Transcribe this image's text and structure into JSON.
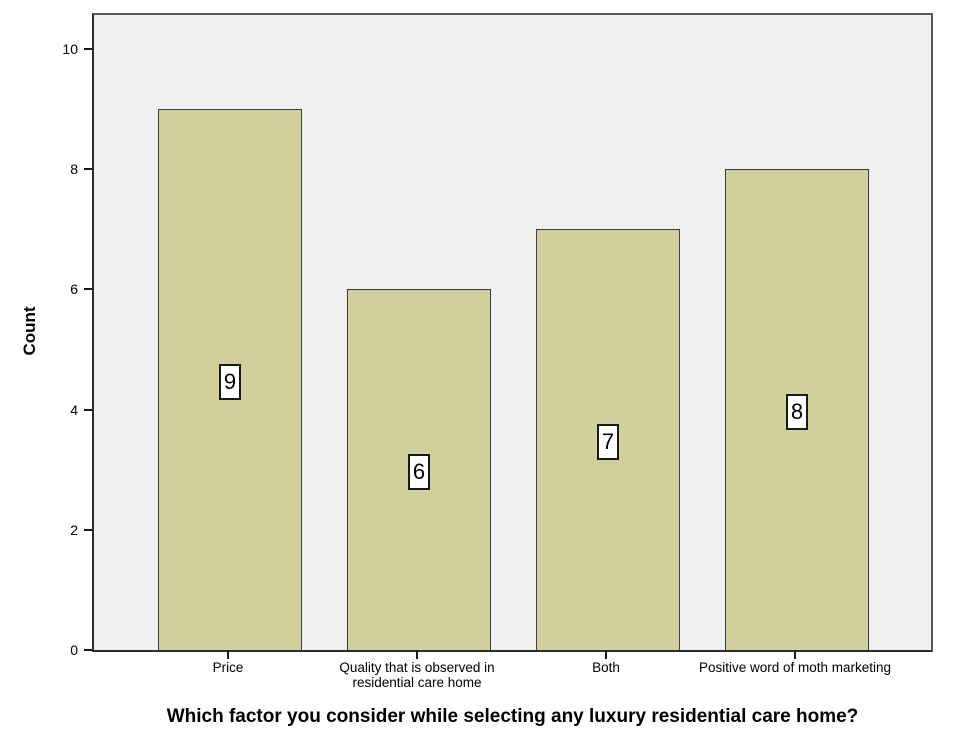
{
  "chart_data": {
    "type": "bar",
    "xlabel": "Which factor you consider while selecting any luxury residential care home?",
    "ylabel": "Count",
    "categories": [
      "Price",
      "Quality that is observed in residential care home",
      "Both",
      "Positive word of moth marketing"
    ],
    "values": [
      9,
      6,
      7,
      8
    ],
    "bar_labels": [
      "9",
      "6",
      "7",
      "8"
    ],
    "yticks": [
      0,
      2,
      4,
      6,
      8,
      10
    ],
    "ylim": [
      0,
      10
    ],
    "grid": false,
    "legend": "none",
    "layout_hint": "value labels boxed at vertical center of each bar; question text serves as bold x-axis title below chart",
    "colors": {
      "bar_fill": "#d2cf9e",
      "bar_border": "#3d3d3d",
      "plot_background": "#f0f0f0",
      "figure_background": "#ffffff",
      "value_label_background": "#ffffff",
      "value_label_border": "#1a1a1a",
      "text": "#000000"
    }
  }
}
